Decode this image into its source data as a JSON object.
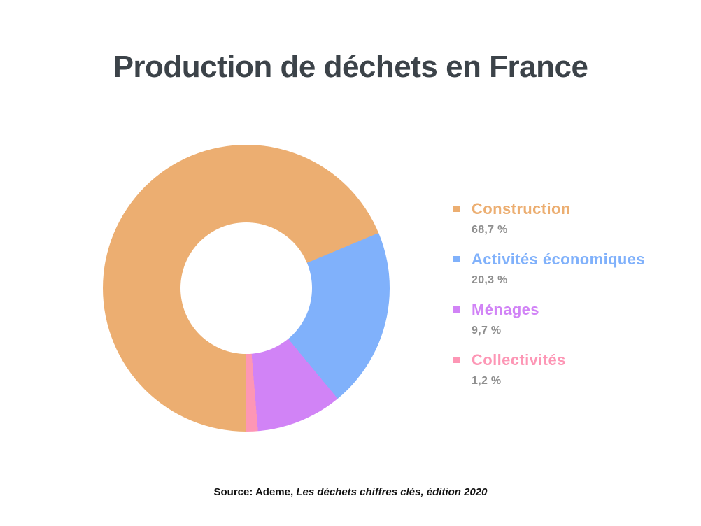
{
  "title": "Production de déchets en France",
  "colors": {
    "title_text": "#3c4349",
    "percent_text": "#8e8e8e",
    "background": "#ffffff"
  },
  "chart_data": {
    "type": "pie",
    "donut": true,
    "title": "Production de déchets en France",
    "legend_position": "right",
    "start_angle_deg": 180,
    "direction": "clockwise",
    "categories": [
      "Construction",
      "Activités économiques",
      "Ménages",
      "Collectivités"
    ],
    "values": [
      68.7,
      20.3,
      9.7,
      1.2
    ],
    "value_labels": [
      "68,7 %",
      "20,3 %",
      "9,7 %",
      "1,2 %"
    ],
    "colors": [
      "#ecae71",
      "#80b1fb",
      "#d183f6",
      "#fd96b5"
    ]
  },
  "source": {
    "prefix": "Source: Ademe,",
    "citation": "Les déchets chiffres clés, édition 2020"
  }
}
